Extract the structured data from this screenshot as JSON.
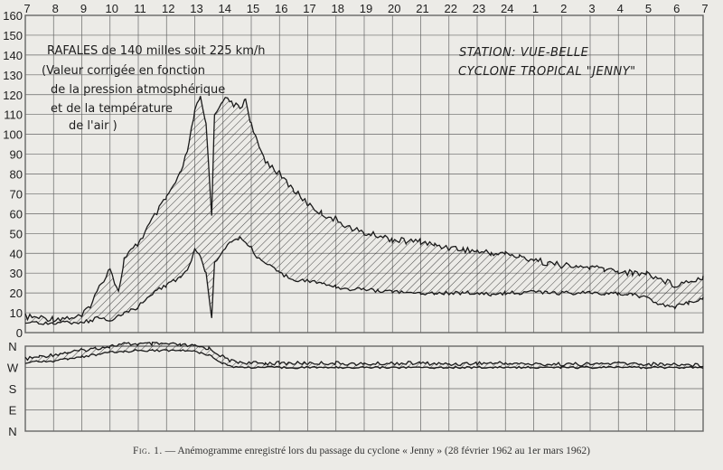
{
  "chart_data": {
    "type": "line",
    "title": "",
    "caption_label": "Fig. 1.",
    "caption_text": "— Anémogramme enregistré lors du passage du cyclone « Jenny » (28 février 1962 au 1er mars 1962)",
    "station_line1": "STATION:  VUE-BELLE",
    "station_line2": "CYCLONE  TROPICAL  \"JENNY\"",
    "annotation": {
      "line1": "RAFALES de 140 milles soit 225 km/h",
      "line2": "(Valeur corrigée en fonction",
      "line3": "de la pression atmosphérique",
      "line4": "et de la température",
      "line5": "de l'air )"
    },
    "x_ticks": [
      "7",
      "8",
      "9",
      "10",
      "11",
      "12",
      "13",
      "14",
      "15",
      "16",
      "17",
      "18",
      "19",
      "20",
      "21",
      "22",
      "23",
      "24",
      "1",
      "2",
      "3",
      "4",
      "5",
      "6",
      "7"
    ],
    "y_ticks": [
      "0",
      "10",
      "20",
      "30",
      "40",
      "50",
      "60",
      "70",
      "80",
      "90",
      "100",
      "110",
      "120",
      "130",
      "140",
      "150",
      "160"
    ],
    "ylim": [
      0,
      160
    ],
    "x_unit": "hour",
    "direction_ticks": [
      "N",
      "W",
      "S",
      "E",
      "N"
    ],
    "series": [
      {
        "x": [
          7,
          8,
          9,
          9.3,
          9.7,
          10,
          10.3,
          10.5,
          11,
          11.5,
          12,
          12.5,
          12.8,
          13,
          13.2,
          13.4,
          13.6,
          13.7,
          14,
          14.3,
          14.6,
          14.8,
          15,
          15.2,
          15.5,
          16,
          16.5,
          17,
          17.5,
          18,
          18.5,
          19,
          19.5,
          20,
          20.5,
          21,
          21.5,
          22,
          22.5,
          23,
          23.5,
          24,
          24.5,
          25,
          25.5,
          26,
          26.5,
          27,
          27.5,
          28,
          28.5,
          29,
          29.5,
          30,
          30.5,
          31
        ],
        "values": [
          8,
          7,
          8,
          14,
          25,
          33,
          20,
          37,
          45,
          57,
          68,
          80,
          95,
          112,
          118,
          105,
          60,
          110,
          118,
          116,
          113,
          118,
          105,
          96,
          87,
          80,
          72,
          65,
          60,
          57,
          53,
          50,
          49,
          47,
          46,
          46,
          44,
          43,
          42,
          41,
          40,
          40,
          38,
          37,
          35,
          34,
          33,
          33,
          32,
          31,
          30,
          30,
          27,
          24,
          26,
          28
        ]
      },
      {
        "x": [
          7,
          8,
          9,
          9.3,
          9.7,
          10,
          10.3,
          10.5,
          11,
          11.5,
          12,
          12.5,
          12.8,
          13,
          13.2,
          13.4,
          13.6,
          13.7,
          14,
          14.3,
          14.6,
          14.8,
          15,
          15.2,
          15.5,
          16,
          16.5,
          17,
          17.5,
          18,
          18.5,
          19,
          19.5,
          20,
          20.5,
          21,
          21.5,
          22,
          22.5,
          23,
          23.5,
          24,
          24.5,
          25,
          25.5,
          26,
          26.5,
          27,
          27.5,
          28,
          28.5,
          29,
          29.5,
          30,
          30.5,
          31
        ],
        "values": [
          5,
          5,
          5,
          6,
          8,
          5,
          8,
          10,
          13,
          20,
          24,
          28,
          33,
          42,
          38,
          30,
          8,
          35,
          42,
          46,
          48,
          45,
          43,
          38,
          35,
          30,
          27,
          26,
          25,
          23,
          22,
          22,
          21,
          21,
          20,
          20,
          20,
          20,
          20,
          20,
          19,
          20,
          20,
          21,
          20,
          20,
          20,
          20,
          19,
          20,
          19,
          18,
          14,
          13,
          15,
          17
        ]
      },
      {
        "x": [
          7,
          7.5,
          8,
          8.5,
          9,
          9.5,
          10,
          10.5,
          11,
          11.5,
          12,
          12.5,
          13,
          13.5,
          14,
          14.3,
          14.6,
          15,
          15.5,
          16,
          17,
          18,
          19,
          20,
          21,
          22,
          23,
          24,
          25,
          26,
          27,
          28,
          29,
          30,
          31
        ],
        "values": [
          3.4,
          3.5,
          3.6,
          3.7,
          3.8,
          3.9,
          4.0,
          4.1,
          4.1,
          4.1,
          4.1,
          4.05,
          4.0,
          3.9,
          3.5,
          3.3,
          3.25,
          3.2,
          3.2,
          3.2,
          3.2,
          3.2,
          3.15,
          3.2,
          3.2,
          3.15,
          3.2,
          3.2,
          3.15,
          3.15,
          3.15,
          3.2,
          3.15,
          3.15,
          3.1
        ]
      },
      {
        "x": [
          7,
          7.5,
          8,
          8.5,
          9,
          9.5,
          10,
          10.5,
          11,
          11.5,
          12,
          12.5,
          13,
          13.5,
          14,
          14.3,
          14.6,
          15,
          15.5,
          16,
          17,
          18,
          19,
          20,
          21,
          22,
          23,
          24,
          25,
          26,
          27,
          28,
          29,
          30,
          31
        ],
        "values": [
          3.2,
          3.3,
          3.3,
          3.4,
          3.5,
          3.6,
          3.7,
          3.75,
          3.8,
          3.8,
          3.8,
          3.8,
          3.75,
          3.6,
          3.2,
          3.05,
          3.0,
          3.0,
          3.0,
          3.0,
          3.0,
          3.0,
          3.0,
          3.0,
          3.0,
          3.0,
          3.0,
          3.0,
          3.0,
          3.0,
          3.0,
          3.0,
          3.0,
          3.0,
          3.0
        ]
      }
    ]
  }
}
